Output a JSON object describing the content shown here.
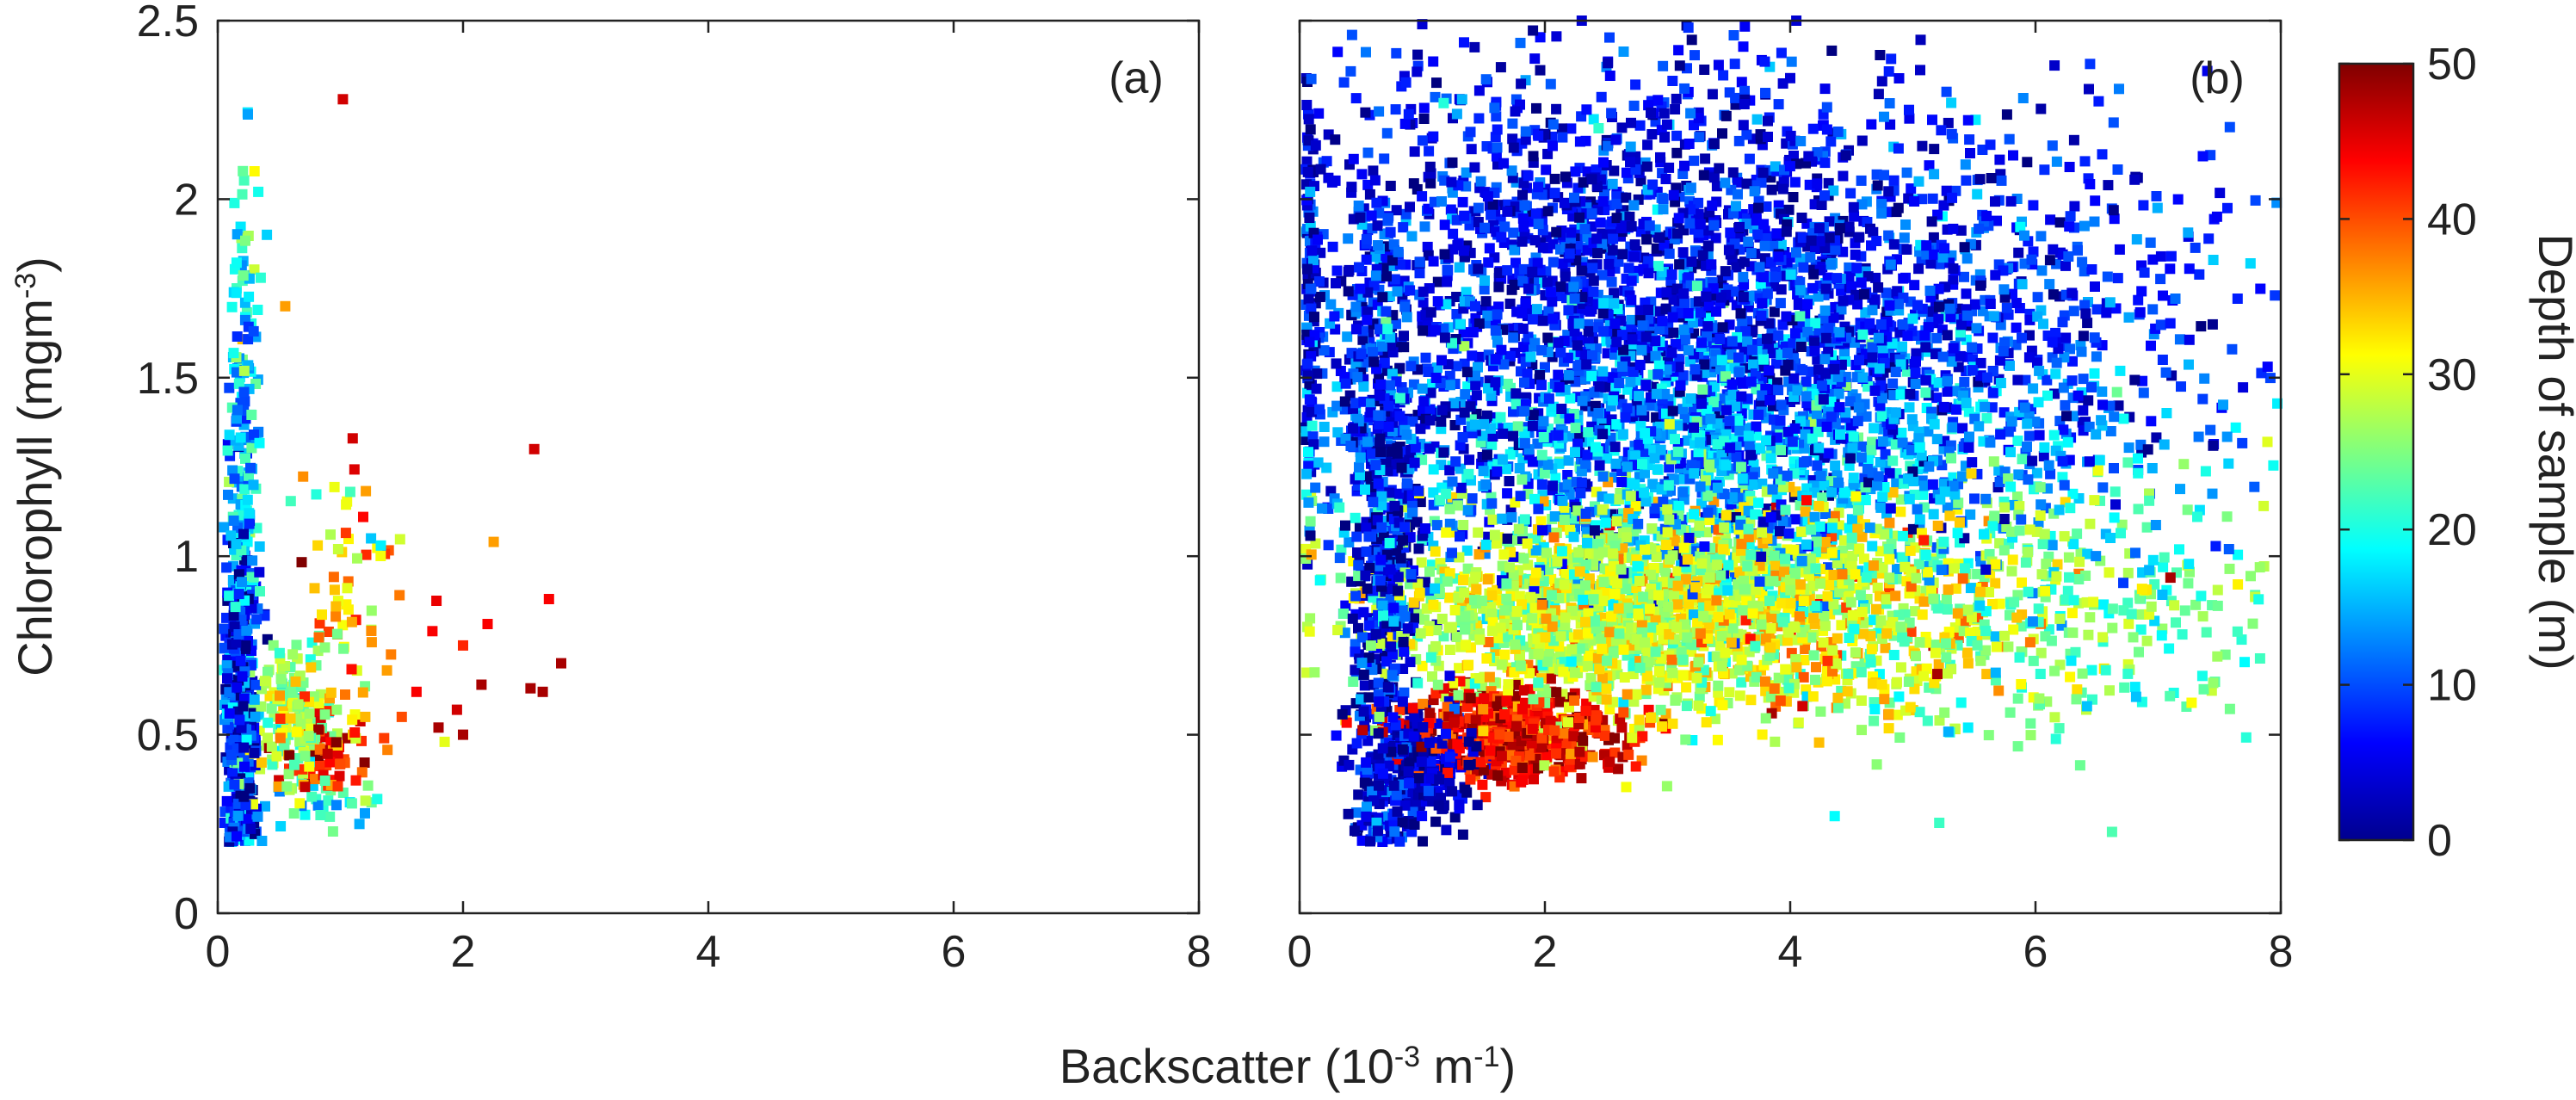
{
  "chart_data": [
    {
      "panel": "a",
      "type": "scatter",
      "panel_label": "(a)",
      "xlim": [
        0,
        8
      ],
      "ylim": [
        0,
        2.5
      ],
      "x_ticks": [
        "0",
        "2",
        "4",
        "6",
        "8"
      ],
      "y_ticks": [
        "0",
        "0.5",
        "1",
        "1.5",
        "2",
        "2.5"
      ],
      "ylabel": "Chlorophyll (mgm",
      "ylabel_sup": "-3",
      "ylabel_tail": ")",
      "color_by": "Depth of sample (m)",
      "clusters": [
        {
          "xc": 0.18,
          "yc": 0.55,
          "sx": 0.07,
          "sy": 0.28,
          "n": 420,
          "dmean": 8,
          "dsd": 6
        },
        {
          "xc": 0.22,
          "yc": 1.25,
          "sx": 0.07,
          "sy": 0.35,
          "n": 160,
          "dmean": 16,
          "dsd": 5
        },
        {
          "xc": 0.22,
          "yc": 1.8,
          "sx": 0.05,
          "sy": 0.15,
          "n": 25,
          "dmean": 22,
          "dsd": 5
        },
        {
          "xc": 0.6,
          "yc": 0.55,
          "sx": 0.18,
          "sy": 0.09,
          "n": 160,
          "dmean": 26,
          "dsd": 4
        },
        {
          "xc": 0.9,
          "yc": 0.45,
          "sx": 0.2,
          "sy": 0.06,
          "n": 60,
          "dmean": 42,
          "dsd": 4
        },
        {
          "xc": 1.0,
          "yc": 0.85,
          "sx": 0.25,
          "sy": 0.2,
          "n": 70,
          "dmean": 34,
          "dsd": 7
        },
        {
          "xc": 0.9,
          "yc": 0.3,
          "sx": 0.2,
          "sy": 0.04,
          "n": 25,
          "dmean": 20,
          "dsd": 5
        }
      ],
      "points": [
        {
          "x": 1.02,
          "y": 2.28,
          "d": 46
        },
        {
          "x": 0.55,
          "y": 1.7,
          "d": 36
        },
        {
          "x": 1.1,
          "y": 1.33,
          "d": 46
        },
        {
          "x": 2.58,
          "y": 1.3,
          "d": 46
        },
        {
          "x": 2.25,
          "y": 1.04,
          "d": 36
        },
        {
          "x": 2.7,
          "y": 0.88,
          "d": 44
        },
        {
          "x": 2.8,
          "y": 0.7,
          "d": 48
        },
        {
          "x": 2.2,
          "y": 0.81,
          "d": 44
        },
        {
          "x": 2.0,
          "y": 0.75,
          "d": 42
        },
        {
          "x": 1.75,
          "y": 0.79,
          "d": 44
        },
        {
          "x": 2.15,
          "y": 0.64,
          "d": 48
        },
        {
          "x": 2.55,
          "y": 0.63,
          "d": 48
        },
        {
          "x": 2.65,
          "y": 0.62,
          "d": 48
        },
        {
          "x": 1.95,
          "y": 0.57,
          "d": 46
        },
        {
          "x": 1.8,
          "y": 0.52,
          "d": 48
        },
        {
          "x": 2.0,
          "y": 0.5,
          "d": 48
        },
        {
          "x": 1.62,
          "y": 0.62,
          "d": 44
        },
        {
          "x": 1.85,
          "y": 0.48,
          "d": 30
        },
        {
          "x": 1.5,
          "y": 0.55,
          "d": 40
        },
        {
          "x": 1.38,
          "y": 0.68,
          "d": 36
        },
        {
          "x": 1.3,
          "y": 0.32,
          "d": 20
        },
        {
          "x": 1.2,
          "y": 0.28,
          "d": 14
        },
        {
          "x": 1.25,
          "y": 1.05,
          "d": 16
        },
        {
          "x": 1.33,
          "y": 1.03,
          "d": 18
        },
        {
          "x": 1.08,
          "y": 1.18,
          "d": 22
        }
      ]
    },
    {
      "panel": "b",
      "type": "scatter",
      "panel_label": "(b)",
      "xlim": [
        0,
        8
      ],
      "ylim": [
        0,
        2.5
      ],
      "x_ticks": [
        "0",
        "2",
        "4",
        "6",
        "8"
      ],
      "color_by": "Depth of sample (m)",
      "clusters": [
        {
          "xc": 2.6,
          "yc": 1.75,
          "sx": 1.5,
          "sy": 0.35,
          "n": 2100,
          "dmean": 6,
          "dsd": 4
        },
        {
          "xc": 4.8,
          "yc": 1.65,
          "sx": 1.5,
          "sy": 0.25,
          "n": 900,
          "dmean": 8,
          "dsd": 4
        },
        {
          "xc": 3.5,
          "yc": 1.3,
          "sx": 1.5,
          "sy": 0.2,
          "n": 1200,
          "dmean": 16,
          "dsd": 4
        },
        {
          "xc": 2.6,
          "yc": 0.85,
          "sx": 1.0,
          "sy": 0.15,
          "n": 1500,
          "dmean": 28,
          "dsd": 4
        },
        {
          "xc": 4.2,
          "yc": 0.85,
          "sx": 0.8,
          "sy": 0.15,
          "n": 400,
          "dmean": 33,
          "dsd": 4
        },
        {
          "xc": 5.8,
          "yc": 0.85,
          "sx": 1.1,
          "sy": 0.2,
          "n": 450,
          "dmean": 24,
          "dsd": 4
        },
        {
          "xc": 1.8,
          "yc": 0.5,
          "sx": 0.45,
          "sy": 0.06,
          "n": 500,
          "dmean": 44,
          "dsd": 4
        },
        {
          "xc": 1.0,
          "yc": 0.4,
          "sx": 0.2,
          "sy": 0.08,
          "n": 250,
          "dmean": 3,
          "dsd": 3
        },
        {
          "xc": 0.7,
          "yc": 0.9,
          "sx": 0.15,
          "sy": 0.4,
          "n": 500,
          "dmean": 5,
          "dsd": 5
        },
        {
          "xc": 0.6,
          "yc": 1.5,
          "sx": 0.15,
          "sy": 0.25,
          "n": 150,
          "dmean": 10,
          "dsd": 5
        }
      ],
      "points": [
        {
          "x": 0.65,
          "y": 0.55,
          "d": 26
        },
        {
          "x": 4.1,
          "y": 0.58,
          "d": 46
        },
        {
          "x": 3.85,
          "y": 0.56,
          "d": 48
        },
        {
          "x": 5.2,
          "y": 0.67,
          "d": 48
        },
        {
          "x": 7.1,
          "y": 0.94,
          "d": 48
        },
        {
          "x": 2.3,
          "y": 2.5,
          "d": 4
        },
        {
          "x": 4.05,
          "y": 2.5,
          "d": 4
        },
        {
          "x": 1.0,
          "y": 2.49,
          "d": 4
        }
      ]
    }
  ],
  "x_axis_title": {
    "text": "Backscatter (10",
    "sup1": "-3",
    "mid": " m",
    "sup2": "-1",
    "tail": ")"
  },
  "colorbar": {
    "label": "Depth of sample (m)",
    "ticks": [
      "0",
      "10",
      "20",
      "30",
      "40",
      "50"
    ],
    "range": [
      0,
      50
    ]
  }
}
